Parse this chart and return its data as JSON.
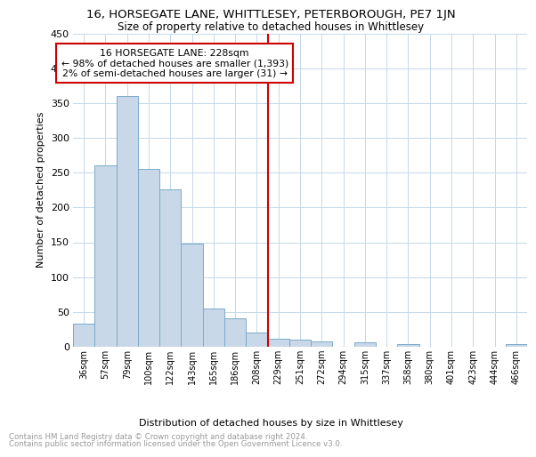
{
  "title": "16, HORSEGATE LANE, WHITTLESEY, PETERBOROUGH, PE7 1JN",
  "subtitle": "Size of property relative to detached houses in Whittlesey",
  "xlabel": "Distribution of detached houses by size in Whittlesey",
  "ylabel": "Number of detached properties",
  "footer_line1": "Contains HM Land Registry data © Crown copyright and database right 2024.",
  "footer_line2": "Contains public sector information licensed under the Open Government Licence v3.0.",
  "bar_labels": [
    "36sqm",
    "57sqm",
    "79sqm",
    "100sqm",
    "122sqm",
    "143sqm",
    "165sqm",
    "186sqm",
    "208sqm",
    "229sqm",
    "251sqm",
    "272sqm",
    "294sqm",
    "315sqm",
    "337sqm",
    "358sqm",
    "380sqm",
    "401sqm",
    "423sqm",
    "444sqm",
    "466sqm"
  ],
  "bar_values": [
    33,
    260,
    360,
    255,
    226,
    148,
    55,
    41,
    20,
    12,
    10,
    8,
    0,
    6,
    0,
    4,
    0,
    0,
    0,
    0,
    4
  ],
  "bar_color": "#c8d8e8",
  "bar_edge_color": "#7aaac8",
  "annotation_line_idx": 9,
  "annotation_line1": "16 HORSEGATE LANE: 228sqm",
  "annotation_line2": "← 98% of detached houses are smaller (1,393)",
  "annotation_line3": "2% of semi-detached houses are larger (31) →",
  "annotation_box_color": "#ffffff",
  "annotation_box_edge_color": "#cc0000",
  "vline_color": "#cc0000",
  "grid_color": "#c5d8e8",
  "background_color": "#ffffff",
  "ylim": [
    0,
    450
  ],
  "yticks": [
    0,
    50,
    100,
    150,
    200,
    250,
    300,
    350,
    400,
    450
  ]
}
